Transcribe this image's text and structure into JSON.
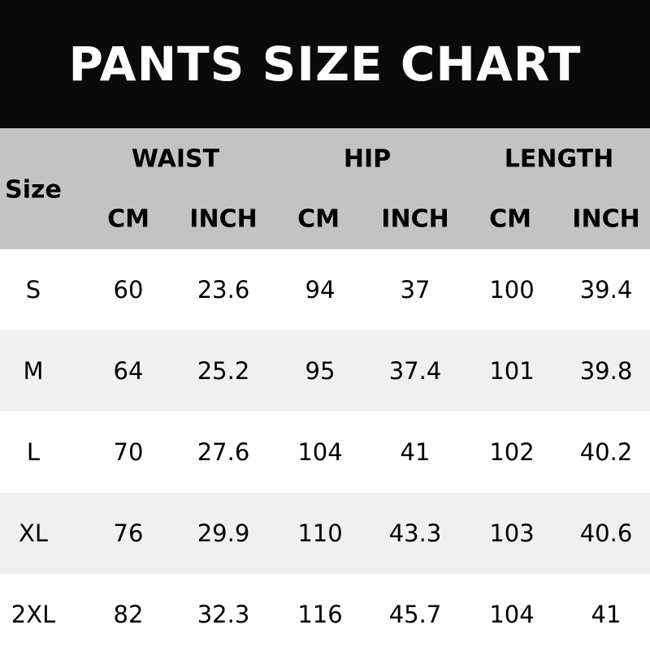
{
  "title": "PANTS SIZE CHART",
  "colors": {
    "title_bg": "#0a0a0a",
    "header_bg": "#c3c3c3",
    "row_alt_bg": "#f0f0f0"
  },
  "header": {
    "size_label": "Size",
    "groups": [
      "WAIST",
      "HIP",
      "LENGTH"
    ],
    "units": [
      "CM",
      "INCH",
      "CM",
      "INCH",
      "CM",
      "INCH"
    ]
  },
  "rows": [
    [
      "S",
      "60",
      "23.6",
      "94",
      "37",
      "100",
      "39.4"
    ],
    [
      "M",
      "64",
      "25.2",
      "95",
      "37.4",
      "101",
      "39.8"
    ],
    [
      "L",
      "70",
      "27.6",
      "104",
      "41",
      "102",
      "40.2"
    ],
    [
      "XL",
      "76",
      "29.9",
      "110",
      "43.3",
      "103",
      "40.6"
    ],
    [
      "2XL",
      "82",
      "32.3",
      "116",
      "45.7",
      "104",
      "41"
    ]
  ]
}
